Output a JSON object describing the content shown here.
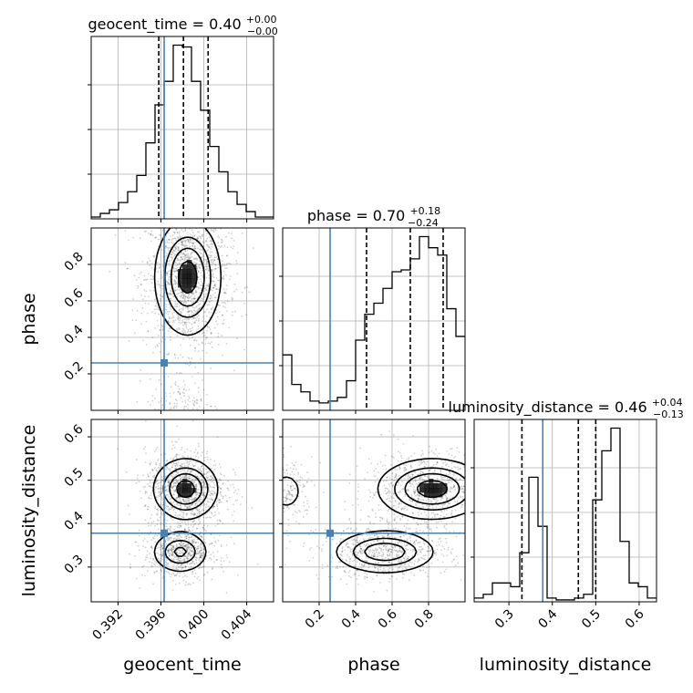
{
  "chart_data": {
    "type": "corner",
    "parameters": [
      "geocent_time",
      "phase",
      "luminosity_distance"
    ],
    "titles": [
      {
        "label": "geocent_time",
        "median": "0.40",
        "plus": "+0.00",
        "minus": "−0.00"
      },
      {
        "label": "phase",
        "median": "0.70",
        "plus": "+0.18",
        "minus": "−0.24"
      },
      {
        "label": "luminosity_distance",
        "median": "0.46",
        "plus": "+0.04",
        "minus": "−0.13"
      }
    ],
    "ranges": [
      [
        0.3895,
        0.4065
      ],
      [
        0.0,
        1.0
      ],
      [
        0.22,
        0.64
      ]
    ],
    "ticks": [
      [
        0.392,
        0.396,
        0.4,
        0.404
      ],
      [
        0.2,
        0.4,
        0.6,
        0.8
      ],
      [
        0.3,
        0.4,
        0.5,
        0.6
      ]
    ],
    "tick_labels": [
      [
        "0.392",
        "0.396",
        "0.400",
        "0.404"
      ],
      [
        "0.2",
        "0.4",
        "0.6",
        "0.8"
      ],
      [
        "0.3",
        "0.4",
        "0.5",
        "0.6"
      ]
    ],
    "truths": [
      0.3963,
      0.26,
      0.378
    ],
    "quantiles": [
      [
        0.3958,
        0.3981,
        0.4004
      ],
      [
        0.46,
        0.7,
        0.88
      ],
      [
        0.33,
        0.46,
        0.5
      ]
    ],
    "histograms": [
      {
        "bin_start": 0.3895,
        "bin_width": 0.00085,
        "counts": [
          1,
          3,
          5,
          9,
          15,
          24,
          42,
          63,
          76,
          96,
          95,
          76,
          60,
          40,
          26,
          15,
          8,
          4,
          1,
          1
        ]
      },
      {
        "bin_start": 0.0,
        "bin_width": 0.05,
        "counts": [
          30,
          14,
          10,
          5,
          4,
          5,
          7,
          16,
          38,
          52,
          58,
          66,
          75,
          76,
          82,
          94,
          88,
          84,
          55,
          40
        ]
      },
      {
        "bin_start": 0.22,
        "bin_width": 0.021,
        "counts": [
          2,
          4,
          10,
          10,
          8,
          26,
          66,
          40,
          2,
          1,
          1,
          2,
          4,
          54,
          80,
          92,
          32,
          10,
          8,
          2
        ]
      }
    ],
    "density_2d": [
      {
        "x_param": "geocent_time",
        "y_param": "phase",
        "blobs": [
          {
            "x": 0.3985,
            "y": 0.73,
            "sx": 0.00155,
            "sy": 0.16,
            "weight": 0.88
          },
          {
            "x": 0.3982,
            "y": 0.0,
            "sx": 0.00135,
            "sy": 0.07,
            "weight": 0.12
          }
        ]
      },
      {
        "x_param": "geocent_time",
        "y_param": "luminosity_distance",
        "blobs": [
          {
            "x": 0.3983,
            "y": 0.48,
            "sx": 0.0015,
            "sy": 0.035,
            "weight": 0.6
          },
          {
            "x": 0.3978,
            "y": 0.335,
            "sx": 0.00135,
            "sy": 0.025,
            "weight": 0.4
          }
        ]
      },
      {
        "x_param": "phase",
        "y_param": "luminosity_distance",
        "blobs": [
          {
            "x": 0.82,
            "y": 0.48,
            "sx": 0.15,
            "sy": 0.035,
            "weight": 0.48
          },
          {
            "x": 0.02,
            "y": 0.475,
            "sx": 0.06,
            "sy": 0.03,
            "weight": 0.12
          },
          {
            "x": 0.56,
            "y": 0.335,
            "sx": 0.14,
            "sy": 0.025,
            "weight": 0.4
          }
        ]
      }
    ],
    "truth_color": "#4682b4",
    "contour_color": "#000000",
    "grid": true
  }
}
